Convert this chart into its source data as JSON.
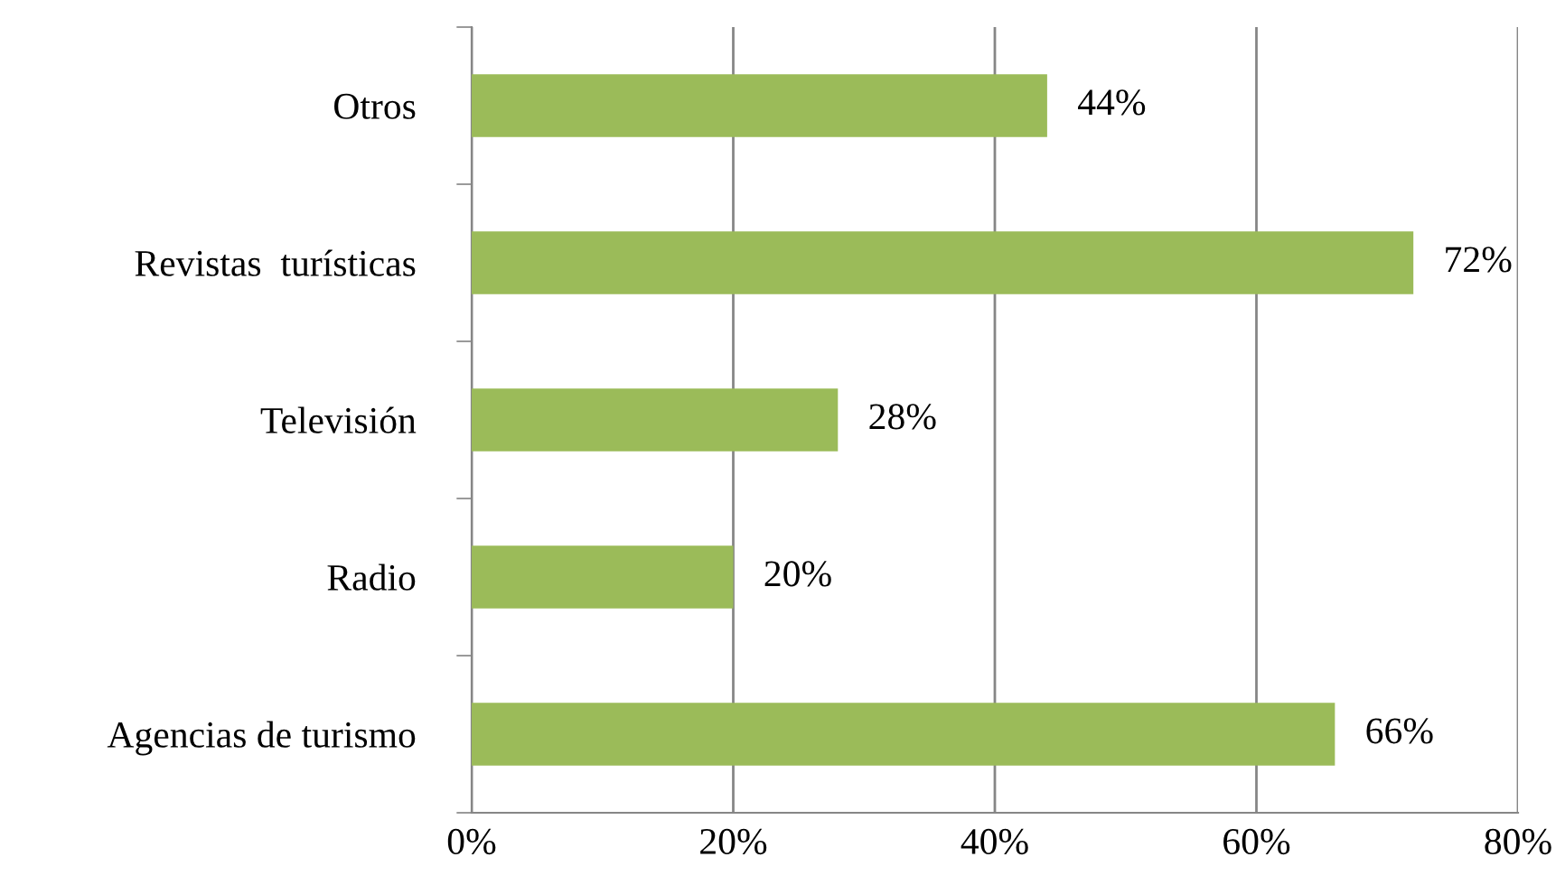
{
  "chart_data": {
    "type": "bar",
    "orientation": "horizontal",
    "categories": [
      "Otros",
      "Revistas  turísticas",
      "Televisión",
      "Radio",
      "Agencias de turismo"
    ],
    "values": [
      44,
      72,
      28,
      20,
      66
    ],
    "value_labels": [
      "44%",
      "72%",
      "28%",
      "20%",
      "66%"
    ],
    "color": "#9bbb59",
    "xlim": [
      0,
      80
    ],
    "xticks": [
      {
        "value": 0,
        "label": "0%"
      },
      {
        "value": 20,
        "label": "20%"
      },
      {
        "value": 40,
        "label": "40%"
      },
      {
        "value": 60,
        "label": "60%"
      },
      {
        "value": 80,
        "label": "80%"
      }
    ],
    "grid": "x",
    "legend": false
  }
}
